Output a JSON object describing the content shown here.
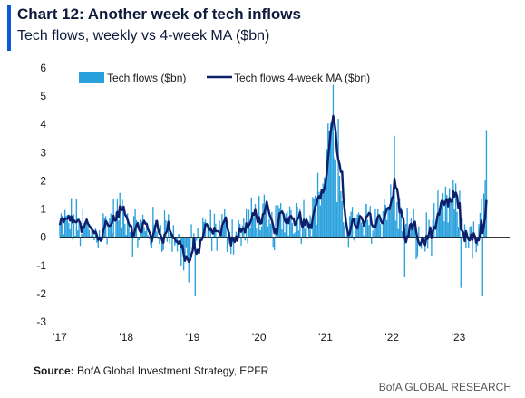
{
  "header": {
    "title": "Chart 12: Another week of tech inflows",
    "subtitle": "Tech flows, weekly vs 4-week MA ($bn)"
  },
  "footer": {
    "source_label": "Source:",
    "source_text": "BofA Global Investment Strategy, EPFR",
    "credit": "BofA GLOBAL RESEARCH"
  },
  "colors": {
    "bars": "#2aa0dd",
    "line": "#0d1f6b",
    "accent": "#0a5ad6"
  },
  "chart_data": {
    "type": "bar",
    "title": "Chart 12: Another week of tech inflows",
    "subtitle": "Tech flows, weekly vs 4-week MA ($bn)",
    "xlabel": "",
    "ylabel": "",
    "ylim": [
      -3,
      6
    ],
    "yticks": [
      -3,
      -2,
      -1,
      0,
      1,
      2,
      3,
      4,
      5,
      6
    ],
    "ytick_labels": [
      "-3",
      "-2",
      "-1",
      "0",
      "1",
      "2",
      "3",
      "4",
      "5",
      "6"
    ],
    "xticks": [
      "'17",
      "'18",
      "'19",
      "'20",
      "'21",
      "'22",
      "'23"
    ],
    "x_start": "2017-01",
    "x_end": "2023-06",
    "frequency": "weekly",
    "legend_position": "top",
    "grid": false,
    "series": [
      {
        "name": "Tech flows ($bn)",
        "type": "bar",
        "color": "#2aa0dd"
      },
      {
        "name": "Tech flows 4-week MA ($bn)",
        "type": "line",
        "color": "#0d1f6b"
      }
    ],
    "anchors": [
      [
        "2017-01",
        0.3
      ],
      [
        "2017-03",
        0.6
      ],
      [
        "2017-05",
        0.3
      ],
      [
        "2017-07",
        0.1
      ],
      [
        "2017-09",
        0.4
      ],
      [
        "2017-11",
        0.7
      ],
      [
        "2018-01",
        0.9
      ],
      [
        "2018-02",
        0.2
      ],
      [
        "2018-04",
        0.3
      ],
      [
        "2018-06",
        0.2
      ],
      [
        "2018-08",
        0.4
      ],
      [
        "2018-10",
        -0.1
      ],
      [
        "2018-12",
        -0.8
      ],
      [
        "2019-01",
        -0.4
      ],
      [
        "2019-03",
        0.1
      ],
      [
        "2019-05",
        0.2
      ],
      [
        "2019-07",
        0.3
      ],
      [
        "2019-09",
        0.1
      ],
      [
        "2019-11",
        0.4
      ],
      [
        "2020-01",
        0.9
      ],
      [
        "2020-03",
        0.2
      ],
      [
        "2020-05",
        0.6
      ],
      [
        "2020-07",
        1.0
      ],
      [
        "2020-09",
        0.7
      ],
      [
        "2020-11",
        1.1
      ],
      [
        "2021-01",
        2.2
      ],
      [
        "2021-02",
        4.8
      ],
      [
        "2021-03",
        1.5
      ],
      [
        "2021-05",
        0.5
      ],
      [
        "2021-07",
        0.3
      ],
      [
        "2021-09",
        0.6
      ],
      [
        "2021-11",
        0.8
      ],
      [
        "2022-01",
        1.4
      ],
      [
        "2022-02",
        0.8
      ],
      [
        "2022-04",
        0.3
      ],
      [
        "2022-06",
        -0.2
      ],
      [
        "2022-08",
        0.2
      ],
      [
        "2022-10",
        0.8
      ],
      [
        "2022-12",
        1.3
      ],
      [
        "2023-02",
        0.4
      ],
      [
        "2023-04",
        -0.4
      ],
      [
        "2023-05",
        0.4
      ],
      [
        "2023-06",
        1.7
      ]
    ],
    "notable_points": [
      {
        "date": "2018-12",
        "value": -1.6
      },
      {
        "date": "2019-01",
        "value": -2.1
      },
      {
        "date": "2021-02",
        "value": 5.4
      },
      {
        "date": "2021-03",
        "value": 4.2
      },
      {
        "date": "2022-01",
        "value": 3.6
      },
      {
        "date": "2022-03",
        "value": -1.4
      },
      {
        "date": "2023-01",
        "value": -1.8
      },
      {
        "date": "2023-05",
        "value": -2.1
      },
      {
        "date": "2023-06",
        "value": 3.8
      }
    ]
  }
}
